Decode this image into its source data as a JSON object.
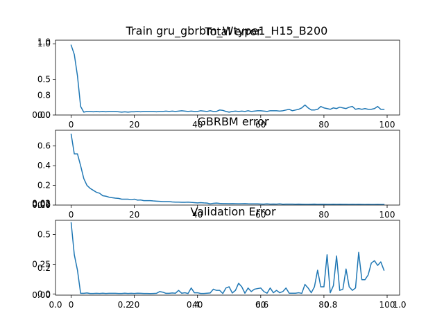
{
  "figure": {
    "suptitle": "Train gru_gbrbm_Wtype1_H15_B200"
  },
  "chart_data": [
    {
      "type": "line",
      "title": "Total error",
      "xlabel": "",
      "ylabel": "",
      "xlim": [
        -4.95,
        103.95
      ],
      "ylim": [
        0.0,
        1.05
      ],
      "xticks": [
        0,
        20,
        40,
        60,
        80,
        100
      ],
      "yticks": [
        0.0,
        0.5,
        1.0
      ],
      "overlay_ticks": [
        0.0,
        0.8,
        1.0
      ],
      "grid": false,
      "legend": "none",
      "series": [
        {
          "color": "#1f77b4",
          "x": [
            0,
            1,
            2,
            3,
            4,
            5,
            6,
            7,
            8,
            9,
            10,
            11,
            12,
            13,
            14,
            15,
            16,
            17,
            18,
            19,
            20,
            21,
            22,
            23,
            24,
            25,
            26,
            27,
            28,
            29,
            30,
            31,
            32,
            33,
            34,
            35,
            36,
            37,
            38,
            39,
            40,
            41,
            42,
            43,
            44,
            45,
            46,
            47,
            48,
            49,
            50,
            51,
            52,
            53,
            54,
            55,
            56,
            57,
            58,
            59,
            60,
            61,
            62,
            63,
            64,
            65,
            66,
            67,
            68,
            69,
            70,
            71,
            72,
            73,
            74,
            75,
            76,
            77,
            78,
            79,
            80,
            81,
            82,
            83,
            84,
            85,
            86,
            87,
            88,
            89,
            90,
            91,
            92,
            93,
            94,
            95,
            96,
            97,
            98,
            99
          ],
          "values": [
            0.98,
            0.85,
            0.55,
            0.12,
            0.04,
            0.05,
            0.05,
            0.045,
            0.05,
            0.045,
            0.05,
            0.045,
            0.05,
            0.05,
            0.05,
            0.045,
            0.04,
            0.045,
            0.04,
            0.045,
            0.045,
            0.05,
            0.045,
            0.05,
            0.05,
            0.05,
            0.05,
            0.045,
            0.05,
            0.05,
            0.055,
            0.05,
            0.055,
            0.05,
            0.055,
            0.06,
            0.055,
            0.05,
            0.055,
            0.05,
            0.05,
            0.06,
            0.055,
            0.05,
            0.06,
            0.05,
            0.05,
            0.07,
            0.065,
            0.05,
            0.04,
            0.05,
            0.055,
            0.05,
            0.055,
            0.05,
            0.06,
            0.05,
            0.055,
            0.06,
            0.06,
            0.055,
            0.05,
            0.06,
            0.06,
            0.06,
            0.055,
            0.06,
            0.07,
            0.08,
            0.06,
            0.07,
            0.08,
            0.1,
            0.14,
            0.1,
            0.07,
            0.07,
            0.08,
            0.12,
            0.1,
            0.09,
            0.08,
            0.1,
            0.09,
            0.11,
            0.1,
            0.09,
            0.11,
            0.12,
            0.08,
            0.09,
            0.08,
            0.09,
            0.08,
            0.08,
            0.09,
            0.12,
            0.08,
            0.08
          ]
        }
      ]
    },
    {
      "type": "line",
      "title": "GBRBM error",
      "xlabel": "",
      "ylabel": "",
      "xlim": [
        -4.95,
        103.95
      ],
      "ylim": [
        0.0,
        0.76
      ],
      "xticks": [
        0,
        20,
        40,
        60,
        80,
        100
      ],
      "yticks": [
        0.0,
        0.2,
        0.4,
        0.6
      ],
      "overlay_ticks": [
        0.0,
        0.01,
        0.02
      ],
      "grid": false,
      "legend": "none",
      "series": [
        {
          "color": "#1f77b4",
          "x": [
            0,
            1,
            2,
            3,
            4,
            5,
            6,
            7,
            8,
            9,
            10,
            11,
            12,
            13,
            14,
            15,
            16,
            17,
            18,
            19,
            20,
            21,
            22,
            23,
            24,
            25,
            26,
            27,
            28,
            29,
            30,
            31,
            32,
            33,
            34,
            35,
            36,
            37,
            38,
            39,
            40,
            41,
            42,
            43,
            44,
            45,
            46,
            47,
            48,
            49,
            50,
            51,
            52,
            53,
            54,
            55,
            56,
            57,
            58,
            59,
            60,
            61,
            62,
            63,
            64,
            65,
            66,
            67,
            68,
            69,
            70,
            71,
            72,
            73,
            74,
            75,
            76,
            77,
            78,
            79,
            80,
            81,
            82,
            83,
            84,
            85,
            86,
            87,
            88,
            89,
            90,
            91,
            92,
            93,
            94,
            95,
            96,
            97,
            98,
            99
          ],
          "values": [
            0.72,
            0.52,
            0.52,
            0.4,
            0.27,
            0.2,
            0.17,
            0.15,
            0.13,
            0.12,
            0.095,
            0.09,
            0.08,
            0.075,
            0.07,
            0.068,
            0.06,
            0.06,
            0.06,
            0.055,
            0.06,
            0.05,
            0.052,
            0.045,
            0.045,
            0.045,
            0.042,
            0.04,
            0.038,
            0.035,
            0.035,
            0.035,
            0.032,
            0.03,
            0.03,
            0.028,
            0.028,
            0.03,
            0.027,
            0.025,
            0.022,
            0.025,
            0.022,
            0.02,
            0.012,
            0.018,
            0.02,
            0.017,
            0.015,
            0.015,
            0.014,
            0.015,
            0.014,
            0.013,
            0.014,
            0.015,
            0.013,
            0.012,
            0.012,
            0.012,
            0.011,
            0.01,
            0.012,
            0.01,
            0.011,
            0.01,
            0.012,
            0.009,
            0.01,
            0.01,
            0.01,
            0.009,
            0.01,
            0.009,
            0.008,
            0.008,
            0.009,
            0.01,
            0.008,
            0.009,
            0.009,
            0.008,
            0.008,
            0.009,
            0.008,
            0.009,
            0.008,
            0.008,
            0.007,
            0.008,
            0.007,
            0.008,
            0.007,
            0.006,
            0.007,
            0.006,
            0.006,
            0.007,
            0.006,
            0.006
          ]
        }
      ]
    },
    {
      "type": "line",
      "title": "Validation Error",
      "xlabel": "",
      "ylabel": "",
      "xlim": [
        -4.95,
        103.95
      ],
      "ylim": [
        -0.01,
        0.62
      ],
      "xticks": [
        0,
        20,
        40,
        60,
        80,
        100
      ],
      "yticks": [
        0.0,
        0.25,
        0.5
      ],
      "overlay_ticks": [
        0.0,
        0.2
      ],
      "overlay_xticks": [
        "0.0",
        "0.2",
        "0.4",
        "0.6",
        "0.8",
        "1.0"
      ],
      "grid": false,
      "legend": "none",
      "series": [
        {
          "color": "#1f77b4",
          "x": [
            0,
            1,
            2,
            3,
            4,
            5,
            6,
            7,
            8,
            9,
            10,
            11,
            12,
            13,
            14,
            15,
            16,
            17,
            18,
            19,
            20,
            21,
            22,
            23,
            24,
            25,
            26,
            27,
            28,
            29,
            30,
            31,
            32,
            33,
            34,
            35,
            36,
            37,
            38,
            39,
            40,
            41,
            42,
            43,
            44,
            45,
            46,
            47,
            48,
            49,
            50,
            51,
            52,
            53,
            54,
            55,
            56,
            57,
            58,
            59,
            60,
            61,
            62,
            63,
            64,
            65,
            66,
            67,
            68,
            69,
            70,
            71,
            72,
            73,
            74,
            75,
            76,
            77,
            78,
            79,
            80,
            81,
            82,
            83,
            84,
            85,
            86,
            87,
            88,
            89,
            90,
            91,
            92,
            93,
            94,
            95,
            96,
            97,
            98,
            99
          ],
          "values": [
            0.6,
            0.33,
            0.2,
            0.005,
            0.005,
            0.008,
            0.004,
            0.004,
            0.005,
            0.004,
            0.006,
            0.004,
            0.005,
            0.005,
            0.005,
            0.004,
            0.004,
            0.006,
            0.004,
            0.005,
            0.004,
            0.006,
            0.005,
            0.004,
            0.004,
            0.003,
            0.004,
            0.005,
            0.02,
            0.015,
            0.005,
            0.005,
            0.008,
            0.006,
            0.03,
            0.006,
            0.01,
            0.004,
            0.05,
            0.01,
            0.01,
            0.004,
            0.004,
            0.006,
            0.008,
            0.04,
            0.03,
            0.03,
            0.004,
            0.05,
            0.06,
            0.008,
            0.03,
            0.09,
            0.06,
            0.006,
            0.05,
            0.02,
            0.04,
            0.045,
            0.05,
            0.02,
            0.006,
            0.05,
            0.01,
            0.03,
            0.01,
            0.02,
            0.05,
            0.006,
            0.006,
            0.006,
            0.01,
            0.005,
            0.08,
            0.05,
            0.01,
            0.06,
            0.2,
            0.06,
            0.06,
            0.33,
            0.01,
            0.07,
            0.32,
            0.03,
            0.04,
            0.21,
            0.06,
            0.03,
            0.05,
            0.35,
            0.12,
            0.12,
            0.16,
            0.26,
            0.28,
            0.24,
            0.27,
            0.2
          ]
        }
      ]
    }
  ]
}
